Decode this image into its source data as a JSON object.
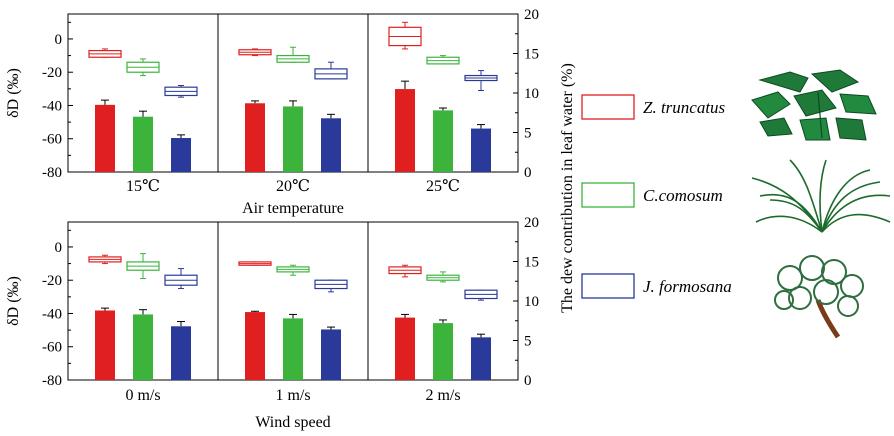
{
  "chart_data": [
    {
      "type": "bar",
      "panel": "top",
      "xlabel": "Air temperature",
      "ylabel": "δD (‰)",
      "y2label": "The dew contribution in leaf water  (%)",
      "ylim": [
        -80,
        15
      ],
      "y2lim": [
        0,
        20
      ],
      "yticks": [
        0,
        -20,
        -40,
        -60,
        -80
      ],
      "y2ticks": [
        0,
        5,
        10,
        15,
        20
      ],
      "categories": [
        "15℃",
        "20℃",
        "25℃"
      ],
      "series": [
        {
          "name": "Z. truncatus",
          "color": "#e02020",
          "dew_contribution": [
            8.5,
            8.7,
            10.5
          ],
          "dew_err": [
            0.6,
            0.3,
            1.0
          ],
          "box": [
            {
              "low": -11,
              "q1": -11,
              "q3": -7,
              "high": -6
            },
            {
              "low": -10,
              "q1": -9.5,
              "q3": -6.5,
              "high": -6
            },
            {
              "low": -6,
              "q1": -4,
              "q3": 7,
              "high": 10
            }
          ]
        },
        {
          "name": "C.comosum",
          "color": "#3cb43c",
          "dew_contribution": [
            7.0,
            8.3,
            7.8
          ],
          "dew_err": [
            0.7,
            0.7,
            0.3
          ],
          "box": [
            {
              "low": -22,
              "q1": -20,
              "q3": -14,
              "high": -12
            },
            {
              "low": -14,
              "q1": -14,
              "q3": -10,
              "high": -5
            },
            {
              "low": -15,
              "q1": -15,
              "q3": -11,
              "high": -10
            }
          ]
        },
        {
          "name": "J. formosana",
          "color": "#2a3a9a",
          "dew_contribution": [
            4.3,
            6.8,
            5.5
          ],
          "dew_err": [
            0.4,
            0.5,
            0.5
          ],
          "box": [
            {
              "low": -35,
              "q1": -34,
              "q3": -29,
              "high": -28
            },
            {
              "low": -24,
              "q1": -24,
              "q3": -18,
              "high": -14
            },
            {
              "low": -31,
              "q1": -25,
              "q3": -22,
              "high": -19
            }
          ]
        }
      ]
    },
    {
      "type": "bar",
      "panel": "bottom",
      "xlabel": "Wind speed",
      "ylabel": "δD (‰)",
      "y2label": "",
      "ylim": [
        -80,
        15
      ],
      "y2lim": [
        0,
        20
      ],
      "yticks": [
        0,
        -20,
        -40,
        -60,
        -80
      ],
      "y2ticks": [
        0,
        5,
        10,
        15,
        20
      ],
      "categories": [
        "0 m/s",
        "1 m/s",
        "2 m/s"
      ],
      "series": [
        {
          "name": "Z. truncatus",
          "color": "#e02020",
          "dew_contribution": [
            8.8,
            8.6,
            7.9
          ],
          "dew_err": [
            0.3,
            0.1,
            0.4
          ],
          "box": [
            {
              "low": -10,
              "q1": -9,
              "q3": -6,
              "high": -5
            },
            {
              "low": -11,
              "q1": -11,
              "q3": -9,
              "high": -9
            },
            {
              "low": -18,
              "q1": -16,
              "q3": -12,
              "high": -11
            }
          ]
        },
        {
          "name": "C.comosum",
          "color": "#3cb43c",
          "dew_contribution": [
            8.3,
            7.8,
            7.2
          ],
          "dew_err": [
            0.6,
            0.5,
            0.4
          ],
          "box": [
            {
              "low": -19,
              "q1": -14,
              "q3": -9,
              "high": -4
            },
            {
              "low": -17,
              "q1": -15,
              "q3": -12,
              "high": -11
            },
            {
              "low": -21,
              "q1": -20,
              "q3": -17,
              "high": -15
            }
          ]
        },
        {
          "name": "J. formosana",
          "color": "#2a3a9a",
          "dew_contribution": [
            6.8,
            6.4,
            5.4
          ],
          "dew_err": [
            0.6,
            0.3,
            0.4
          ],
          "box": [
            {
              "low": -25,
              "q1": -23,
              "q3": -17,
              "high": -13
            },
            {
              "low": -27,
              "q1": -25,
              "q3": -20,
              "high": -20
            },
            {
              "low": -32,
              "q1": -31,
              "q3": -26,
              "high": -26
            }
          ]
        }
      ]
    }
  ],
  "legend": [
    {
      "label": "Z. truncatus",
      "color": "#e02020",
      "icon": "palm-leaf-cluster-icon"
    },
    {
      "label": "C.comosum",
      "color": "#3cb43c",
      "icon": "grass-clump-icon"
    },
    {
      "label": "J. formosana",
      "color": "#2a3a9a",
      "icon": "juniper-tree-icon"
    }
  ]
}
